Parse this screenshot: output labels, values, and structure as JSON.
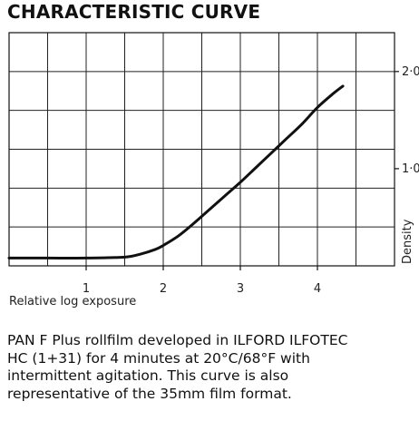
{
  "chart_data": {
    "type": "line",
    "title": "CHARACTERISTIC CURVE",
    "xlabel": "Relative log exposure",
    "ylabel": "Density",
    "xlim": [
      0,
      5
    ],
    "ylim": [
      0,
      2.4
    ],
    "x_ticks": [
      {
        "value": 1,
        "label": "1"
      },
      {
        "value": 2,
        "label": "2"
      },
      {
        "value": 3,
        "label": "3"
      },
      {
        "value": 4,
        "label": "4"
      }
    ],
    "y_ticks": [
      {
        "value": 1.0,
        "label": "1·0"
      },
      {
        "value": 2.0,
        "label": "2·0"
      }
    ],
    "grid": true,
    "series": [
      {
        "color": "#111111",
        "x": [
          0.0,
          0.5,
          1.0,
          1.5,
          1.7,
          1.9,
          2.0,
          2.2,
          2.4,
          2.6,
          2.8,
          3.0,
          3.2,
          3.4,
          3.6,
          3.8,
          4.0,
          4.2,
          4.33
        ],
        "y": [
          0.08,
          0.08,
          0.08,
          0.09,
          0.12,
          0.17,
          0.21,
          0.31,
          0.44,
          0.58,
          0.72,
          0.86,
          1.01,
          1.16,
          1.31,
          1.46,
          1.63,
          1.77,
          1.85
        ]
      }
    ]
  },
  "caption_lines": [
    "PAN F Plus rollfilm developed in ILFORD ILFOTEC",
    "HC (1+31) for 4 minutes at 20°C/68°F with",
    "intermittent agitation. This curve is also",
    "representative of the 35mm film format."
  ]
}
